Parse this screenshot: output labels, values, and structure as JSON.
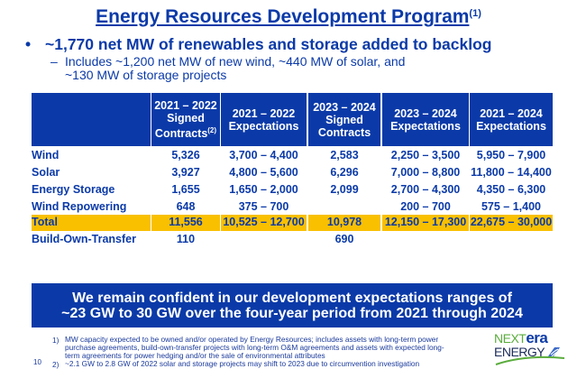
{
  "title": "Energy Resources Development Program",
  "title_footnote": "(1)",
  "bullet": "~1,770 net MW of renewables and storage added to backlog",
  "bullet_marker": "•",
  "subbullet_marker": "–",
  "subbullet_line1": "Includes ~1,200 net MW of new wind, ~440 MW of solar, and",
  "subbullet_line2": "~130 MW of storage projects",
  "table": {
    "headers": [
      {
        "l1": "2021 – 2022",
        "l2": "Signed",
        "l3": "Contracts",
        "sup": "(2)"
      },
      {
        "l1": "2021 – 2022",
        "l2": "Expectations",
        "l3": "",
        "sup": ""
      },
      {
        "l1": "2023 – 2024",
        "l2": "Signed",
        "l3": "Contracts",
        "sup": ""
      },
      {
        "l1": "2023 – 2024",
        "l2": "Expectations",
        "l3": "",
        "sup": ""
      },
      {
        "l1": "2021 – 2024",
        "l2": "Expectations",
        "l3": "",
        "sup": ""
      }
    ],
    "rows": [
      {
        "label": "Wind",
        "values": [
          "5,326",
          "3,700 – 4,400",
          "2,583",
          "2,250 – 3,500",
          "5,950 – 7,900"
        ]
      },
      {
        "label": "Solar",
        "values": [
          "3,927",
          "4,800 – 5,600",
          "6,296",
          "7,000 – 8,800",
          "11,800 – 14,400"
        ]
      },
      {
        "label": "Energy Storage",
        "values": [
          "1,655",
          "1,650 – 2,000",
          "2,099",
          "2,700 – 4,300",
          "4,350 – 6,300"
        ]
      },
      {
        "label": "Wind Repowering",
        "values": [
          "648",
          "375 – 700",
          "",
          "200 – 700",
          "575 – 1,400"
        ]
      },
      {
        "label": "Total",
        "values": [
          "11,556",
          "10,525 – 12,700",
          "10,978",
          "12,150 – 17,300",
          "22,675 – 30,000"
        ]
      },
      {
        "label": "Build-Own-Transfer",
        "values": [
          "110",
          "",
          "690",
          "",
          ""
        ]
      }
    ]
  },
  "banner": {
    "line1": "We remain confident in our development expectations ranges of",
    "line2": "~23 GW to 30 GW over the four-year period from 2021 through 2024"
  },
  "footnotes": [
    {
      "num": "1)",
      "lines": [
        "MW capacity expected to be owned and/or operated by Energy Resources; includes assets with long-term power",
        "purchase agreements, build-own-transfer projects with long-term O&M agreements and assets with expected long-",
        "term agreements for power hedging and/or the sale of environmental attributes"
      ]
    },
    {
      "num": "2)",
      "lines": [
        "~2.1 GW to 2.8 GW of 2022 solar and storage projects may shift to 2023 due to circumvention investigation"
      ]
    }
  ],
  "page_number": "10",
  "logo": {
    "next": "NEXT",
    "era": "era",
    "energy": "ENERGY"
  },
  "colors": {
    "brand_blue": "#0b3aa8",
    "total_yellow": "#f9c000",
    "logo_green": "#5aac3c"
  }
}
